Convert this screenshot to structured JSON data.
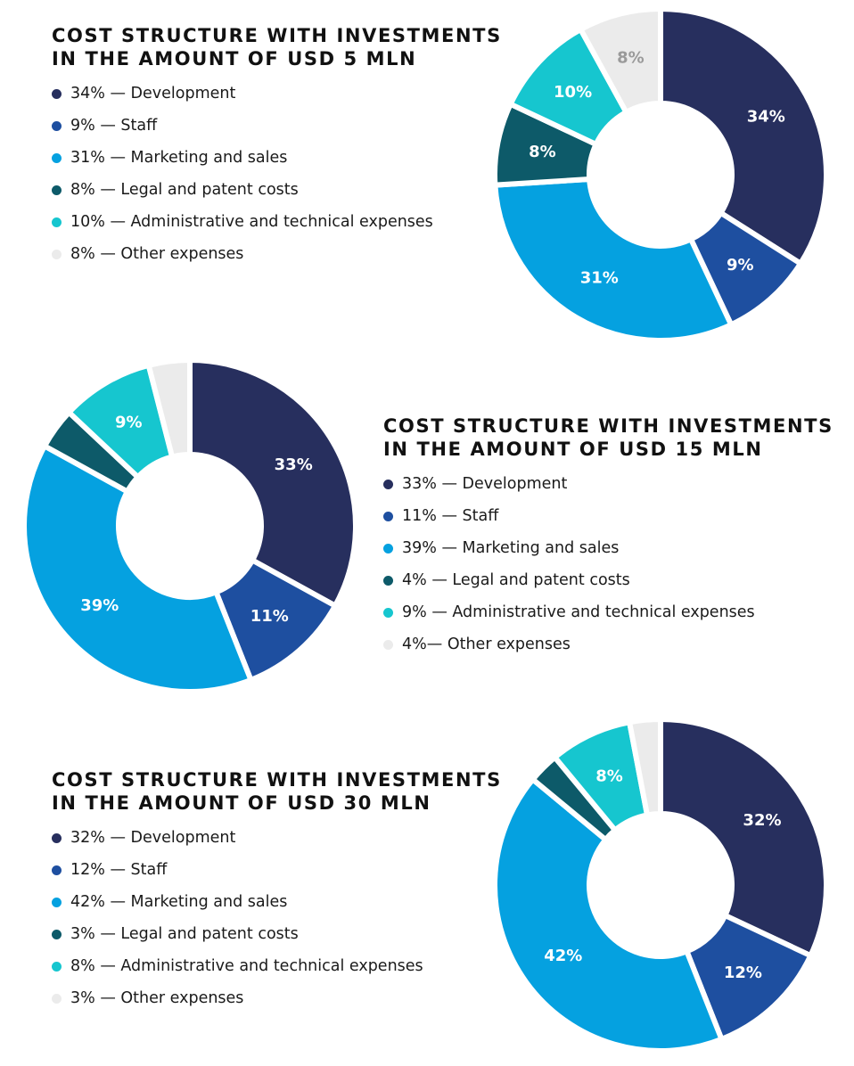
{
  "chart_data": [
    {
      "type": "pie",
      "title": "COST STRUCTURE WITH INVESTMENTS IN THE AMOUNT OF USD 5 MLN",
      "title_lines": [
        "COST STRUCTURE WITH INVESTMENTS",
        "IN THE AMOUNT OF USD 5 MLN"
      ],
      "categories": [
        "Development",
        "Staff",
        "Marketing and sales",
        "Legal and patent costs",
        "Administrative and technical expenses",
        "Other expenses"
      ],
      "values": [
        34,
        9,
        31,
        8,
        10,
        8
      ],
      "slice_labels": [
        "34%",
        "9%",
        "31%",
        "8%",
        "10%",
        "8%"
      ],
      "legend": [
        "34% — Development",
        "9% — Staff",
        "31% — Marketing and sales",
        "8% — Legal and patent costs",
        "10% — Administrative and technical expenses",
        "8% — Other expenses"
      ],
      "legend_placement": "left"
    },
    {
      "type": "pie",
      "title": "COST STRUCTURE WITH INVESTMENTS IN THE AMOUNT OF USD 15 MLN",
      "title_lines": [
        "COST STRUCTURE WITH INVESTMENTS",
        "IN THE AMOUNT OF USD 15 MLN"
      ],
      "categories": [
        "Development",
        "Staff",
        "Marketing and sales",
        "Legal and patent costs",
        "Administrative and technical expenses",
        "Other expenses"
      ],
      "values": [
        33,
        11,
        39,
        4,
        9,
        4
      ],
      "slice_labels": [
        "33%",
        "11%",
        "39%",
        "",
        "9%",
        ""
      ],
      "legend": [
        "33% — Development",
        "11% — Staff",
        "39% — Marketing and sales",
        "4% — Legal and patent costs",
        "9% — Administrative and technical expenses",
        "4%— Other expenses"
      ],
      "legend_placement": "right"
    },
    {
      "type": "pie",
      "title": "COST STRUCTURE WITH INVESTMENTS IN THE AMOUNT OF USD 30 MLN",
      "title_lines": [
        "COST STRUCTURE WITH INVESTMENTS",
        "IN THE AMOUNT OF USD 30 MLN"
      ],
      "categories": [
        "Development",
        "Staff",
        "Marketing and sales",
        "Legal and patent costs",
        "Administrative and technical expenses",
        "Other expenses"
      ],
      "values": [
        32,
        12,
        42,
        3,
        8,
        3
      ],
      "slice_labels": [
        "32%",
        "12%",
        "42%",
        "",
        "8%",
        ""
      ],
      "legend": [
        "32% — Development",
        "12% — Staff",
        "42% — Marketing and sales",
        "3% — Legal and patent costs",
        "8% — Administrative and technical expenses",
        "3% — Other expenses"
      ],
      "legend_placement": "left"
    }
  ],
  "colors": [
    "#272f5e",
    "#1e4fa0",
    "#05a1e0",
    "#0d5a69",
    "#16c6cf",
    "#ebebeb"
  ],
  "label_colors": [
    "#ffffff",
    "#ffffff",
    "#ffffff",
    "#ffffff",
    "#ffffff",
    "#9a9a9a"
  ]
}
